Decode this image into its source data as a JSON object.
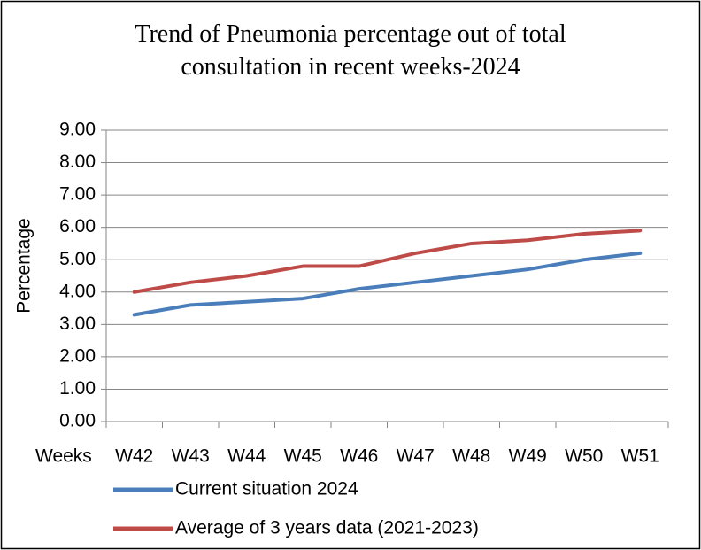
{
  "chart_data": {
    "type": "line",
    "title": "Trend of Pneumonia percentage out of total consultation in recent weeks-2024",
    "xlabel": "Weeks",
    "ylabel": "Percentage",
    "categories": [
      "W42",
      "W43",
      "W44",
      "W45",
      "W46",
      "W47",
      "W48",
      "W49",
      "W50",
      "W51"
    ],
    "series": [
      {
        "name": "Current situation 2024",
        "color": "#4a7ebb",
        "values": [
          3.3,
          3.6,
          3.7,
          3.8,
          4.1,
          4.3,
          4.5,
          4.7,
          5.0,
          5.2
        ]
      },
      {
        "name": "Average of 3 years data (2021-2023)",
        "color": "#be4b48",
        "values": [
          4.0,
          4.3,
          4.5,
          4.8,
          4.8,
          5.2,
          5.5,
          5.6,
          5.8,
          5.9
        ]
      }
    ],
    "ylim": [
      0,
      9
    ],
    "yticks": [
      {
        "value": 0,
        "label": "0.00"
      },
      {
        "value": 1,
        "label": "1.00"
      },
      {
        "value": 2,
        "label": "2.00"
      },
      {
        "value": 3,
        "label": "3.00"
      },
      {
        "value": 4,
        "label": "4.00"
      },
      {
        "value": 5,
        "label": "5.00"
      },
      {
        "value": 6,
        "label": "6.00"
      },
      {
        "value": 7,
        "label": "7.00"
      },
      {
        "value": 8,
        "label": "8.00"
      },
      {
        "value": 9,
        "label": "9.00"
      }
    ],
    "grid": true,
    "legend": "bottom"
  }
}
